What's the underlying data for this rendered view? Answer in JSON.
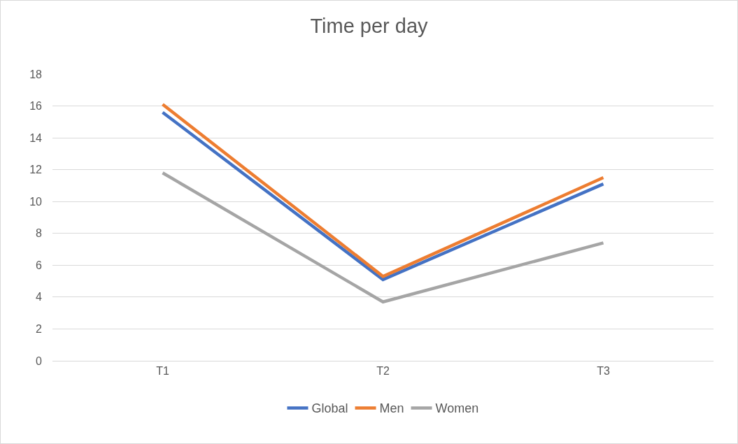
{
  "chart_data": {
    "type": "line",
    "title": "Time per day",
    "categories": [
      "T1",
      "T2",
      "T3"
    ],
    "series": [
      {
        "name": "Global",
        "color": "#4472c4",
        "values": [
          15.6,
          5.1,
          11.1
        ]
      },
      {
        "name": "Men",
        "color": "#ed7d31",
        "values": [
          16.1,
          5.3,
          11.5
        ]
      },
      {
        "name": "Women",
        "color": "#a5a5a5",
        "values": [
          11.8,
          3.7,
          7.4
        ]
      }
    ],
    "ylim": [
      0,
      18
    ],
    "yticks": [
      0,
      2,
      4,
      6,
      8,
      10,
      12,
      14,
      16,
      18
    ],
    "grid": "y",
    "legend": "bottom",
    "marker": "none",
    "line_style": "solid"
  }
}
